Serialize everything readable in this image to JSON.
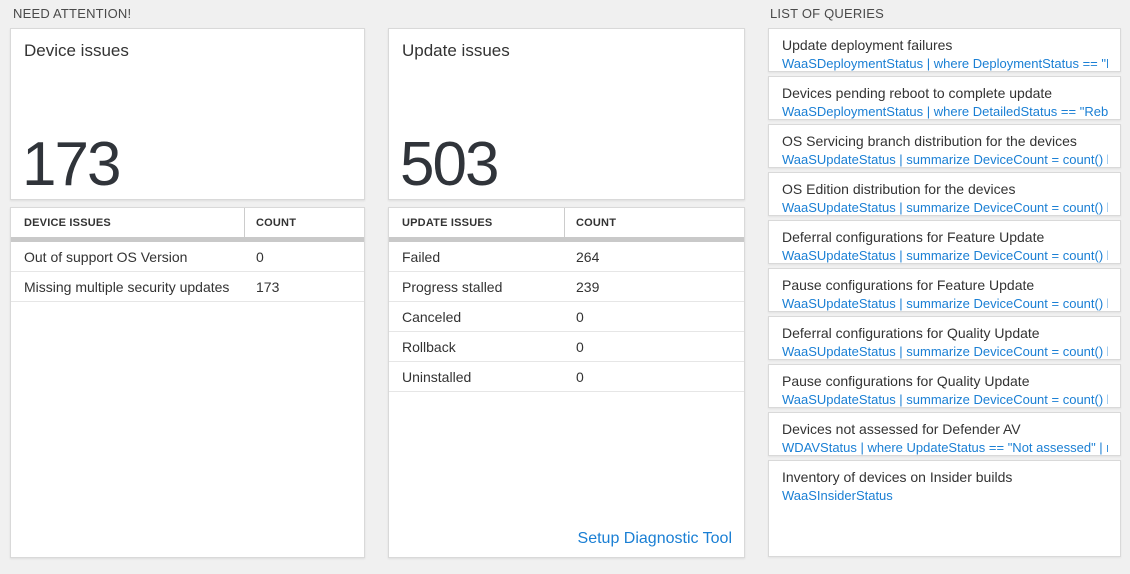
{
  "colors": {
    "background": "#f0f0f0",
    "accent_blue": "#1a7fd4",
    "text_dark": "#333333",
    "header_bar_gray": "#c9c9c9"
  },
  "need_attention": {
    "label": "NEED ATTENTION!",
    "device_card": {
      "title": "Device issues",
      "value": "173"
    },
    "device_table": {
      "col1": "DEVICE ISSUES",
      "col2": "COUNT",
      "rows": [
        {
          "name": "Out of support OS Version",
          "count": "0"
        },
        {
          "name": "Missing multiple security updates",
          "count": "173"
        }
      ]
    },
    "update_card": {
      "title": "Update issues",
      "value": "503"
    },
    "update_table": {
      "col1": "UPDATE ISSUES",
      "col2": "COUNT",
      "rows": [
        {
          "name": "Failed",
          "count": "264"
        },
        {
          "name": "Progress stalled",
          "count": "239"
        },
        {
          "name": "Canceled",
          "count": "0"
        },
        {
          "name": "Rollback",
          "count": "0"
        },
        {
          "name": "Uninstalled",
          "count": "0"
        }
      ],
      "footer_link": "Setup Diagnostic Tool"
    }
  },
  "queries": {
    "label": "LIST OF QUERIES",
    "items": [
      {
        "title": "Update deployment failures",
        "query": "WaaSDeploymentStatus | where DeploymentStatus == \"Failed\" |..."
      },
      {
        "title": "Devices pending reboot to complete update",
        "query": "WaaSDeploymentStatus | where DetailedStatus == \"Reboot pend..."
      },
      {
        "title": "OS Servicing branch distribution for the devices",
        "query": "WaaSUpdateStatus | summarize DeviceCount = count() by OSSer..."
      },
      {
        "title": "OS Edition distribution for the devices",
        "query": "WaaSUpdateStatus | summarize DeviceCount = count() by OSEdit..."
      },
      {
        "title": "Deferral configurations for Feature Update",
        "query": "WaaSUpdateStatus | summarize DeviceCount = count() by Featur..."
      },
      {
        "title": "Pause configurations for Feature Update",
        "query": "WaaSUpdateStatus | summarize DeviceCount = count() by Featur..."
      },
      {
        "title": "Deferral configurations for Quality Update",
        "query": "WaaSUpdateStatus | summarize DeviceCount = count() by Qualit..."
      },
      {
        "title": "Pause configurations for Quality Update",
        "query": "WaaSUpdateStatus | summarize DeviceCount = count() by Qualit..."
      },
      {
        "title": "Devices not assessed for Defender AV",
        "query": "WDAVStatus | where UpdateStatus == \"Not assessed\" | render ta..."
      },
      {
        "title": "Inventory of devices on Insider builds",
        "query": "WaaSInsiderStatus"
      }
    ]
  }
}
